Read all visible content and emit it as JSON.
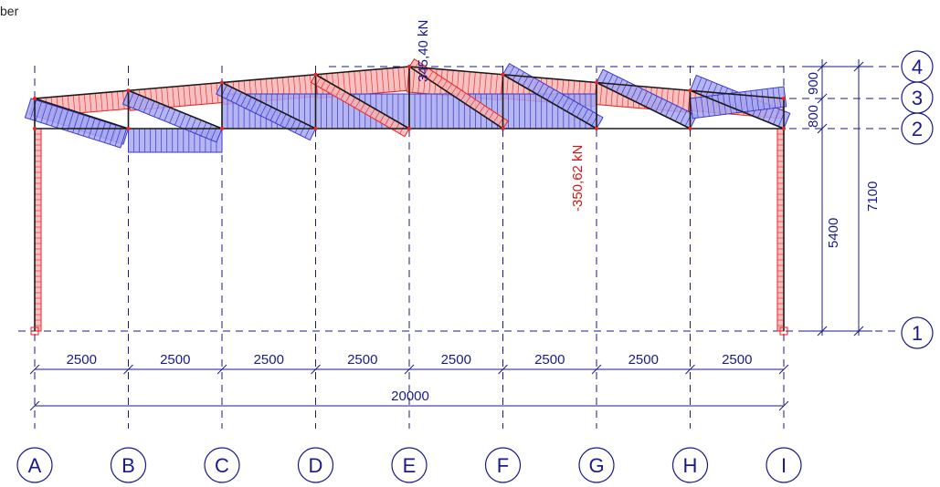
{
  "corner_text": "ber",
  "axes_letters": [
    "A",
    "B",
    "C",
    "D",
    "E",
    "F",
    "G",
    "H",
    "I"
  ],
  "axes_numbers": [
    "1",
    "2",
    "3",
    "4"
  ],
  "bay_dimensions": [
    "2500",
    "2500",
    "2500",
    "2500",
    "2500",
    "2500",
    "2500",
    "2500"
  ],
  "total_span": "20000",
  "vertical_dims": {
    "column_height": "5400",
    "overall_height": "7100",
    "truss_depth": "800",
    "roof_rise": "900"
  },
  "force_labels": {
    "max_tension": "345,40 kN",
    "max_compression": "-350,62 kN"
  },
  "colors": {
    "grid": "#1a1a8c",
    "tension": "#3a3acc",
    "compression": "#e22222"
  }
}
